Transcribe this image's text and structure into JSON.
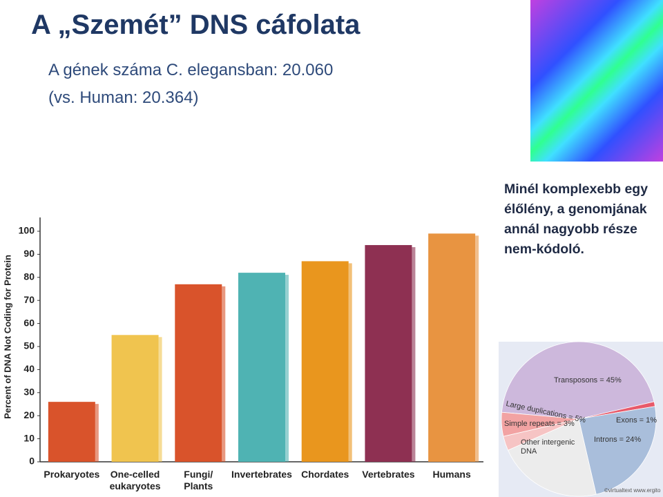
{
  "slide": {
    "title": "A „Szemét” DNS cáfolata",
    "subtitle_line1": "A gének száma C. elegansban: 20.060",
    "subtitle_line2": "(vs. Human: 20.364)",
    "side_text": "Minél komplexebb egy élőlény, a genomjának annál nagyobb része nem-kódoló.",
    "pie_source": "©virtualtext www.ergito"
  },
  "chart_data": [
    {
      "type": "bar",
      "y_label": "Percent of DNA Not Coding for Protein",
      "categories": [
        "Prokaryotes",
        "One-celled eukaryotes",
        "Fungi/ Plants",
        "Invertebrates",
        "Chordates",
        "Vertebrates",
        "Humans"
      ],
      "values": [
        26,
        55,
        77,
        82,
        87,
        94,
        99
      ],
      "colors": [
        "#d9532b",
        "#f0c44f",
        "#d9532b",
        "#4fb3b3",
        "#e9961e",
        "#8e3052",
        "#e89441"
      ],
      "ylim": [
        0,
        100
      ],
      "yticks": [
        0,
        10,
        20,
        30,
        40,
        50,
        60,
        70,
        80,
        90,
        100
      ]
    },
    {
      "type": "pie",
      "labels": [
        "Transposons = 45%",
        "Exons = 1%",
        "Introns = 24%",
        "Other intergenic DNA",
        "Simple repeats = 3%",
        "Large duplications = 5%"
      ],
      "values": [
        45,
        1,
        24,
        22,
        3,
        5
      ],
      "colors": [
        "#cdb8dc",
        "#e85a6a",
        "#a9bedb",
        "#ececec",
        "#f6c4c4",
        "#f2a3a3"
      ]
    }
  ]
}
